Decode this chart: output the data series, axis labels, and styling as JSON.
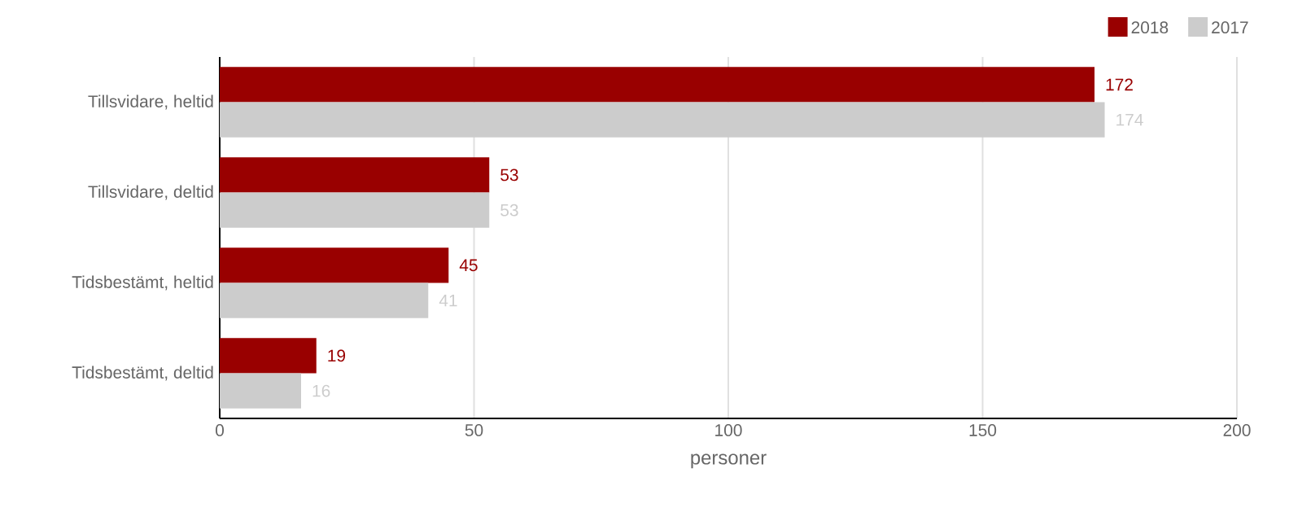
{
  "chart_data": {
    "type": "bar",
    "orientation": "horizontal",
    "xlabel": "personer",
    "categories": [
      "Tillsvidare, heltid",
      "Tillsvidare, deltid",
      "Tidsbestämt, heltid",
      "Tidsbestämt, deltid"
    ],
    "series": [
      {
        "name": "2018",
        "color": "#990000",
        "values": [
          172,
          53,
          45,
          19
        ]
      },
      {
        "name": "2017",
        "color": "#cccccc",
        "values": [
          174,
          53,
          41,
          16
        ]
      }
    ],
    "xlim": [
      0,
      200
    ],
    "xticks": [
      0,
      50,
      100,
      150,
      200
    ],
    "grid": "x",
    "legend": "top right",
    "data_labels": true
  }
}
